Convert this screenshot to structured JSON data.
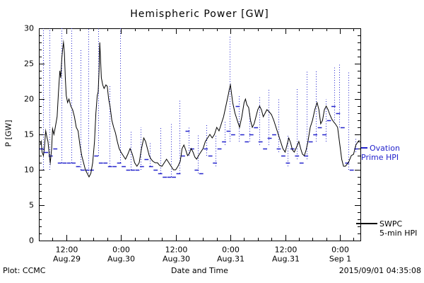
{
  "chart_data": {
    "type": "line",
    "title": "Hemispheric Power [GW]",
    "xlabel": "Date and Time",
    "ylabel": "P [GW]",
    "x_axis": {
      "unit": "hours since 2015-08-29 00:00",
      "min": 6,
      "max": 76.5,
      "minor_step": 3,
      "major_ticks": [
        {
          "value": 12,
          "time": "12:00",
          "date": "Aug.29"
        },
        {
          "value": 24,
          "time": "0:00",
          "date": "Aug.30"
        },
        {
          "value": 36,
          "time": "12:00",
          "date": "Aug.30"
        },
        {
          "value": 48,
          "time": "0:00",
          "date": "Aug.31"
        },
        {
          "value": 60,
          "time": "12:00",
          "date": "Aug.31"
        },
        {
          "value": 72,
          "time": "0:00",
          "date": "Sep 1"
        }
      ]
    },
    "y_axis": {
      "min": 0,
      "max": 30,
      "minor_step": 1,
      "major_ticks": [
        0,
        5,
        10,
        15,
        20,
        25,
        30
      ]
    },
    "series": [
      {
        "name": "SWPC 5-min HPI",
        "color": "#000000",
        "style": "solid-line",
        "points": [
          [
            6.3,
            13.5
          ],
          [
            6.5,
            14
          ],
          [
            6.7,
            12.5
          ],
          [
            7,
            12
          ],
          [
            7.2,
            13
          ],
          [
            7.5,
            15.5
          ],
          [
            7.8,
            14.5
          ],
          [
            8,
            14
          ],
          [
            8.3,
            12
          ],
          [
            8.5,
            11
          ],
          [
            8.8,
            13
          ],
          [
            9,
            15.8
          ],
          [
            9.3,
            15
          ],
          [
            9.6,
            16
          ],
          [
            10,
            17.5
          ],
          [
            10.3,
            21
          ],
          [
            10.6,
            24
          ],
          [
            10.8,
            23
          ],
          [
            11,
            25.5
          ],
          [
            11.2,
            27
          ],
          [
            11.4,
            28
          ],
          [
            11.6,
            26.5
          ],
          [
            11.8,
            23
          ],
          [
            12,
            20.5
          ],
          [
            12.3,
            19.5
          ],
          [
            12.6,
            20
          ],
          [
            13,
            19
          ],
          [
            13.4,
            18.5
          ],
          [
            13.8,
            17.5
          ],
          [
            14.2,
            16
          ],
          [
            14.6,
            15.5
          ],
          [
            15,
            13.5
          ],
          [
            15.4,
            12
          ],
          [
            15.8,
            11
          ],
          [
            16.2,
            10
          ],
          [
            16.6,
            9.5
          ],
          [
            17,
            9
          ],
          [
            17.4,
            9.5
          ],
          [
            17.8,
            11
          ],
          [
            18.2,
            14
          ],
          [
            18.5,
            18
          ],
          [
            18.8,
            20.5
          ],
          [
            19,
            21
          ],
          [
            19.2,
            24
          ],
          [
            19.35,
            28
          ],
          [
            19.5,
            26
          ],
          [
            19.7,
            23
          ],
          [
            20,
            22
          ],
          [
            20.3,
            21.5
          ],
          [
            20.7,
            22
          ],
          [
            21,
            21.8
          ],
          [
            21.3,
            20
          ],
          [
            21.6,
            19
          ],
          [
            22,
            17
          ],
          [
            22.4,
            16
          ],
          [
            22.8,
            15.2
          ],
          [
            23.2,
            14
          ],
          [
            23.6,
            13
          ],
          [
            24,
            12.5
          ],
          [
            24.5,
            12
          ],
          [
            25,
            11.5
          ],
          [
            25.5,
            12.2
          ],
          [
            26,
            13
          ],
          [
            26.5,
            12.2
          ],
          [
            27,
            11
          ],
          [
            27.5,
            10.5
          ],
          [
            28,
            11
          ],
          [
            28.5,
            13
          ],
          [
            29,
            14.5
          ],
          [
            29.4,
            14
          ],
          [
            29.8,
            13
          ],
          [
            30.2,
            12
          ],
          [
            30.6,
            11.5
          ],
          [
            31,
            11.2
          ],
          [
            31.5,
            11
          ],
          [
            32,
            11
          ],
          [
            32.5,
            10.6
          ],
          [
            33,
            10.5
          ],
          [
            33.5,
            11
          ],
          [
            34,
            11.5
          ],
          [
            34.5,
            11
          ],
          [
            35,
            10.5
          ],
          [
            35.5,
            10
          ],
          [
            36,
            10
          ],
          [
            36.5,
            10.5
          ],
          [
            37,
            11.2
          ],
          [
            37.4,
            13
          ],
          [
            37.8,
            13.5
          ],
          [
            38.2,
            12.8
          ],
          [
            38.6,
            12
          ],
          [
            39,
            12.3
          ],
          [
            39.4,
            13
          ],
          [
            39.8,
            12.5
          ],
          [
            40.2,
            11.8
          ],
          [
            40.6,
            11.5
          ],
          [
            41,
            12
          ],
          [
            41.5,
            12.5
          ],
          [
            42,
            13
          ],
          [
            42.5,
            14
          ],
          [
            43,
            14.5
          ],
          [
            43.5,
            15
          ],
          [
            44,
            14.5
          ],
          [
            44.5,
            15
          ],
          [
            45,
            16
          ],
          [
            45.5,
            15.5
          ],
          [
            46,
            16.5
          ],
          [
            46.5,
            17.5
          ],
          [
            47,
            19
          ],
          [
            47.5,
            20.5
          ],
          [
            47.8,
            21.5
          ],
          [
            48,
            22
          ],
          [
            48.2,
            21
          ],
          [
            48.5,
            19.5
          ],
          [
            49,
            18
          ],
          [
            49.5,
            17
          ],
          [
            50,
            16
          ],
          [
            50.5,
            17.5
          ],
          [
            51,
            19.5
          ],
          [
            51.3,
            20
          ],
          [
            51.6,
            19.2
          ],
          [
            52,
            18.8
          ],
          [
            52.4,
            17
          ],
          [
            52.8,
            16
          ],
          [
            53.2,
            16.5
          ],
          [
            53.6,
            17.5
          ],
          [
            54,
            18.5
          ],
          [
            54.4,
            19
          ],
          [
            54.8,
            18.5
          ],
          [
            55.2,
            17.5
          ],
          [
            55.6,
            18
          ],
          [
            56,
            18.5
          ],
          [
            56.5,
            18.2
          ],
          [
            57,
            17.8
          ],
          [
            57.5,
            17
          ],
          [
            58,
            16
          ],
          [
            58.5,
            15
          ],
          [
            59,
            14
          ],
          [
            59.5,
            13
          ],
          [
            60,
            12.5
          ],
          [
            60.4,
            13.5
          ],
          [
            60.8,
            14.5
          ],
          [
            61.2,
            13.8
          ],
          [
            61.6,
            12.8
          ],
          [
            62,
            12.5
          ],
          [
            62.5,
            13.2
          ],
          [
            63,
            14
          ],
          [
            63.4,
            13
          ],
          [
            63.8,
            12.2
          ],
          [
            64.2,
            12
          ],
          [
            64.6,
            12.8
          ],
          [
            65,
            14
          ],
          [
            65.5,
            16
          ],
          [
            66,
            17
          ],
          [
            66.5,
            18.5
          ],
          [
            67,
            19.5
          ],
          [
            67.4,
            18.5
          ],
          [
            67.8,
            16.5
          ],
          [
            68.2,
            17
          ],
          [
            68.6,
            18.5
          ],
          [
            69,
            19
          ],
          [
            69.4,
            18.5
          ],
          [
            69.8,
            17.8
          ],
          [
            70.2,
            17.2
          ],
          [
            70.6,
            16.8
          ],
          [
            71,
            16.5
          ],
          [
            71.5,
            16
          ],
          [
            72,
            13.5
          ],
          [
            72.4,
            11.5
          ],
          [
            72.8,
            10.5
          ],
          [
            73.2,
            10.5
          ],
          [
            73.6,
            10.8
          ],
          [
            74,
            11.2
          ],
          [
            74.5,
            12
          ],
          [
            75,
            12.2
          ],
          [
            75.5,
            13.5
          ],
          [
            76,
            14
          ],
          [
            76.3,
            14.2
          ]
        ]
      },
      {
        "name": "Ovation Prime HPI",
        "color": "#2323cc",
        "style": "horizontal-dashes",
        "dash_half_width_hours": 0.45,
        "points": [
          [
            6.6,
            13
          ],
          [
            7.6,
            12.5
          ],
          [
            8.6,
            12
          ],
          [
            9.6,
            13
          ],
          [
            10.6,
            11
          ],
          [
            11.6,
            11
          ],
          [
            12.6,
            11
          ],
          [
            13.6,
            11
          ],
          [
            14.6,
            10.5
          ],
          [
            15.6,
            10
          ],
          [
            16.6,
            10
          ],
          [
            17.6,
            10
          ],
          [
            18.6,
            12
          ],
          [
            19.6,
            11
          ],
          [
            20.6,
            11
          ],
          [
            21.6,
            10.5
          ],
          [
            22.6,
            10.5
          ],
          [
            23.6,
            11
          ],
          [
            24.6,
            10.5
          ],
          [
            25.6,
            10
          ],
          [
            26.6,
            10
          ],
          [
            27.6,
            10
          ],
          [
            28.6,
            10.5
          ],
          [
            29.6,
            11.5
          ],
          [
            30.6,
            10.5
          ],
          [
            31.6,
            10
          ],
          [
            32.6,
            9.5
          ],
          [
            33.6,
            9
          ],
          [
            34.6,
            9
          ],
          [
            35.6,
            9
          ],
          [
            36.6,
            9.5
          ],
          [
            37.6,
            12
          ],
          [
            38.6,
            15.5
          ],
          [
            39.6,
            13
          ],
          [
            40.6,
            10
          ],
          [
            41.6,
            9.5
          ],
          [
            42.6,
            13
          ],
          [
            43.6,
            12
          ],
          [
            44.6,
            11
          ],
          [
            45.6,
            13
          ],
          [
            46.6,
            14
          ],
          [
            47.6,
            15.5
          ],
          [
            48.6,
            15
          ],
          [
            49.6,
            19
          ],
          [
            50.6,
            15
          ],
          [
            51.6,
            14
          ],
          [
            52.6,
            15
          ],
          [
            53.6,
            16
          ],
          [
            54.6,
            14
          ],
          [
            55.6,
            13
          ],
          [
            56.6,
            14.5
          ],
          [
            57.6,
            15
          ],
          [
            58.6,
            13
          ],
          [
            59.6,
            12
          ],
          [
            60.6,
            11
          ],
          [
            61.6,
            13
          ],
          [
            62.6,
            12
          ],
          [
            63.6,
            11
          ],
          [
            64.6,
            12
          ],
          [
            65.6,
            14
          ],
          [
            66.6,
            15
          ],
          [
            67.6,
            16
          ],
          [
            68.6,
            15
          ],
          [
            69.6,
            17
          ],
          [
            70.6,
            19
          ],
          [
            71.6,
            18
          ],
          [
            72.6,
            16
          ],
          [
            73.6,
            11
          ],
          [
            74.6,
            10
          ],
          [
            75.6,
            13
          ]
        ]
      }
    ],
    "guide_lines": {
      "style": "dotted-vertical",
      "color": "#2323cc",
      "segments": [
        [
          7.0,
          10,
          30
        ],
        [
          8.4,
          10,
          30
        ],
        [
          10.9,
          11,
          30
        ],
        [
          13.2,
          11,
          30
        ],
        [
          15.1,
          10,
          27
        ],
        [
          16.8,
          9.5,
          30
        ],
        [
          19.0,
          12,
          30
        ],
        [
          21.5,
          10.5,
          22
        ],
        [
          23.8,
          11,
          30
        ],
        [
          26.2,
          10,
          15.5
        ],
        [
          28.3,
          10,
          16
        ],
        [
          30.4,
          10.5,
          14
        ],
        [
          32.7,
          9.5,
          16
        ],
        [
          34.9,
          9,
          16.5
        ],
        [
          36.8,
          9.5,
          20
        ],
        [
          38.9,
          12,
          16
        ],
        [
          40.8,
          9.5,
          15
        ],
        [
          42.7,
          12,
          16.5
        ],
        [
          44.8,
          10.5,
          15
        ],
        [
          46.7,
          13.5,
          17
        ],
        [
          47.9,
          14,
          29
        ],
        [
          49.9,
          14,
          20.5
        ],
        [
          52.2,
          14,
          18
        ],
        [
          54.3,
          13.5,
          20.5
        ],
        [
          56.4,
          13.5,
          21.5
        ],
        [
          58.6,
          12.5,
          20
        ],
        [
          60.5,
          10.5,
          15
        ],
        [
          62.6,
          11.5,
          21.5
        ],
        [
          64.7,
          11.5,
          24
        ],
        [
          66.8,
          14,
          24
        ],
        [
          68.9,
          14,
          20
        ],
        [
          70.7,
          17,
          24.5
        ],
        [
          71.8,
          16,
          25
        ],
        [
          73.8,
          10,
          24
        ],
        [
          75.4,
          12.5,
          14.5
        ]
      ]
    }
  },
  "legend": {
    "ovation": {
      "line1": "Ovation",
      "line2": "Prime HPI",
      "color": "#2323cc"
    },
    "swpc": {
      "line1": "SWPC",
      "line2": "5-min HPI",
      "color": "#000000"
    }
  },
  "footer": {
    "left": "Plot: CCMC",
    "right": "2015/09/01 04:35:08"
  }
}
